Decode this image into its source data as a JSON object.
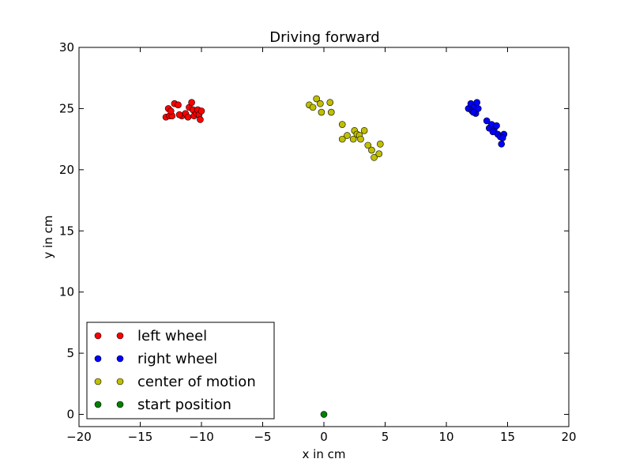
{
  "chart_data": {
    "type": "scatter",
    "title": "Driving forward",
    "xlabel": "x in cm",
    "ylabel": "y in cm",
    "xlim": [
      -20,
      20
    ],
    "ylim": [
      -1,
      30
    ],
    "xticks": [
      -20,
      -15,
      -10,
      -5,
      0,
      5,
      10,
      15,
      20
    ],
    "yticks": [
      0,
      5,
      10,
      15,
      20,
      25,
      30
    ],
    "xtick_labels": [
      "−20",
      "−15",
      "−10",
      "−5",
      "0",
      "5",
      "10",
      "15",
      "20"
    ],
    "ytick_labels": [
      "0",
      "5",
      "10",
      "15",
      "20",
      "25",
      "30"
    ],
    "grid": false,
    "legend_position": "lower-left",
    "series": [
      {
        "name": "left wheel",
        "color": "#ff0000",
        "points": [
          [
            -12.9,
            24.3
          ],
          [
            -12.6,
            24.4
          ],
          [
            -12.4,
            24.4
          ],
          [
            -12.7,
            25.0
          ],
          [
            -12.5,
            24.8
          ],
          [
            -12.2,
            25.4
          ],
          [
            -11.9,
            25.3
          ],
          [
            -11.6,
            24.4
          ],
          [
            -11.3,
            24.6
          ],
          [
            -11.1,
            24.3
          ],
          [
            -11.0,
            25.1
          ],
          [
            -10.8,
            25.5
          ],
          [
            -10.7,
            24.9
          ],
          [
            -10.6,
            24.4
          ],
          [
            -10.4,
            24.6
          ],
          [
            -10.3,
            24.9
          ],
          [
            -10.2,
            24.5
          ],
          [
            -10.1,
            24.1
          ],
          [
            -10.0,
            24.8
          ],
          [
            -11.8,
            24.5
          ]
        ]
      },
      {
        "name": "right wheel",
        "color": "#0000ff",
        "points": [
          [
            11.8,
            25.0
          ],
          [
            12.0,
            25.4
          ],
          [
            12.1,
            24.8
          ],
          [
            12.3,
            25.2
          ],
          [
            12.4,
            24.6
          ],
          [
            12.5,
            25.5
          ],
          [
            12.6,
            25.0
          ],
          [
            12.2,
            24.7
          ],
          [
            13.3,
            24.0
          ],
          [
            13.5,
            23.4
          ],
          [
            13.7,
            23.7
          ],
          [
            13.9,
            23.3
          ],
          [
            14.1,
            23.6
          ],
          [
            14.2,
            22.9
          ],
          [
            14.4,
            22.7
          ],
          [
            14.5,
            22.1
          ],
          [
            14.7,
            22.9
          ],
          [
            14.6,
            22.6
          ],
          [
            13.8,
            23.1
          ]
        ]
      },
      {
        "name": "center of motion",
        "color": "#bfbf00",
        "points": [
          [
            -1.2,
            25.3
          ],
          [
            -0.9,
            25.1
          ],
          [
            -0.6,
            25.8
          ],
          [
            -0.3,
            25.4
          ],
          [
            -0.2,
            24.7
          ],
          [
            0.5,
            25.5
          ],
          [
            0.6,
            24.7
          ],
          [
            1.5,
            23.7
          ],
          [
            1.5,
            22.5
          ],
          [
            1.9,
            22.8
          ],
          [
            2.4,
            22.5
          ],
          [
            2.5,
            23.2
          ],
          [
            2.7,
            22.9
          ],
          [
            2.9,
            22.8
          ],
          [
            3.0,
            22.5
          ],
          [
            3.3,
            23.2
          ],
          [
            3.6,
            22.0
          ],
          [
            3.9,
            21.6
          ],
          [
            4.1,
            21.0
          ],
          [
            4.5,
            21.3
          ],
          [
            4.6,
            22.1
          ]
        ]
      },
      {
        "name": "start position",
        "color": "#008000",
        "points": [
          [
            0.0,
            0.0
          ]
        ]
      }
    ]
  }
}
